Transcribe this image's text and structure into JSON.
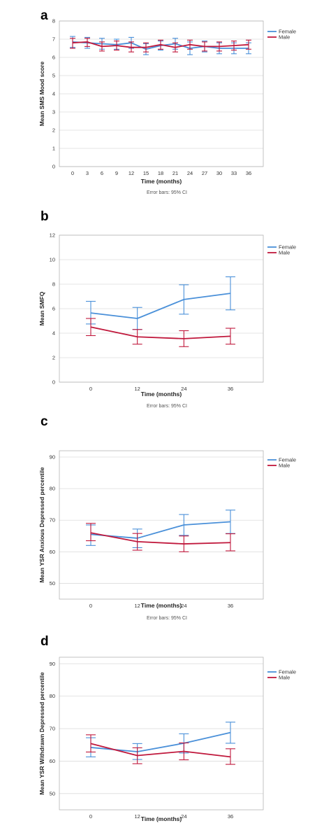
{
  "colors": {
    "female": "#4a90d9",
    "male": "#c0183c",
    "grid": "#dcdcdc",
    "frame": "#b5b5b5"
  },
  "chart_data": [
    {
      "panel": "a",
      "type": "line",
      "ylabel": "Mean SMS Mood score",
      "xlabel": "Time (months)",
      "footnote": "Error bars: 95% CI",
      "x": [
        0,
        3,
        6,
        9,
        12,
        15,
        18,
        21,
        24,
        27,
        30,
        33,
        36
      ],
      "ylim": [
        0,
        8
      ],
      "yticks": [
        0,
        1,
        2,
        3,
        4,
        5,
        6,
        7,
        8
      ],
      "grid": true,
      "legend": "top-right",
      "series": [
        {
          "name": "Female",
          "values": [
            6.85,
            6.8,
            6.75,
            6.7,
            6.8,
            6.45,
            6.65,
            6.75,
            6.5,
            6.6,
            6.5,
            6.5,
            6.5
          ],
          "ci_low": [
            6.55,
            6.5,
            6.45,
            6.45,
            6.5,
            6.15,
            6.4,
            6.45,
            6.15,
            6.3,
            6.2,
            6.2,
            6.2
          ],
          "ci_high": [
            7.15,
            7.1,
            7.05,
            7.0,
            7.1,
            6.75,
            6.9,
            7.05,
            6.85,
            6.9,
            6.8,
            6.8,
            6.8
          ]
        },
        {
          "name": "Male",
          "values": [
            6.8,
            6.85,
            6.6,
            6.65,
            6.55,
            6.55,
            6.7,
            6.55,
            6.7,
            6.6,
            6.6,
            6.65,
            6.7
          ],
          "ci_low": [
            6.5,
            6.6,
            6.35,
            6.4,
            6.3,
            6.3,
            6.45,
            6.3,
            6.45,
            6.35,
            6.35,
            6.4,
            6.45
          ],
          "ci_high": [
            7.05,
            7.05,
            6.85,
            6.9,
            6.85,
            6.8,
            6.95,
            6.8,
            6.95,
            6.85,
            6.85,
            6.9,
            6.95
          ]
        }
      ]
    },
    {
      "panel": "b",
      "type": "line",
      "ylabel": "Mean SMFQ",
      "xlabel": "Time (months)",
      "footnote": "Error bars: 95% CI",
      "x": [
        0,
        12,
        24,
        36
      ],
      "ylim": [
        0,
        12
      ],
      "yticks": [
        0,
        2,
        4,
        6,
        8,
        10,
        12
      ],
      "grid": true,
      "legend": "top-right",
      "series": [
        {
          "name": "Female",
          "values": [
            5.65,
            5.2,
            6.75,
            7.25
          ],
          "ci_low": [
            4.75,
            4.3,
            5.55,
            5.9
          ],
          "ci_high": [
            6.6,
            6.1,
            7.95,
            8.6
          ]
        },
        {
          "name": "Male",
          "values": [
            4.5,
            3.7,
            3.55,
            3.75
          ],
          "ci_low": [
            3.8,
            3.1,
            2.9,
            3.1
          ],
          "ci_high": [
            5.2,
            4.3,
            4.2,
            4.4
          ]
        }
      ]
    },
    {
      "panel": "c",
      "type": "line",
      "ylabel": "Mean YSR Anxious Depressed percentile",
      "xlabel": "Time (months)",
      "footnote": "Error bars: 95% CI",
      "x": [
        0,
        12,
        24,
        36
      ],
      "ylim": [
        45,
        92
      ],
      "yticks": [
        50,
        60,
        70,
        80,
        90
      ],
      "grid": true,
      "legend": "top-right",
      "series": [
        {
          "name": "Female",
          "values": [
            65.5,
            64.3,
            68.5,
            69.5
          ],
          "ci_low": [
            62.0,
            61.3,
            65.2,
            65.8
          ],
          "ci_high": [
            68.5,
            67.2,
            71.8,
            73.2
          ]
        },
        {
          "name": "Male",
          "values": [
            66.0,
            63.2,
            62.5,
            62.9
          ],
          "ci_low": [
            63.5,
            60.5,
            60.0,
            60.3
          ],
          "ci_high": [
            69.0,
            65.8,
            65.0,
            65.7
          ]
        }
      ]
    },
    {
      "panel": "d",
      "type": "line",
      "ylabel": "Mean YSR Withdrawn Depressed percentile",
      "xlabel": "Time (months)",
      "footnote": "",
      "x": [
        0,
        12,
        24,
        36
      ],
      "ylim": [
        45,
        92
      ],
      "yticks": [
        50,
        60,
        70,
        80,
        90
      ],
      "grid": true,
      "legend": "top-right",
      "series": [
        {
          "name": "Female",
          "values": [
            64.2,
            62.9,
            65.5,
            68.8
          ],
          "ci_low": [
            61.3,
            60.5,
            62.5,
            65.5
          ],
          "ci_high": [
            67.2,
            65.4,
            68.4,
            72.0
          ]
        },
        {
          "name": "Male",
          "values": [
            65.4,
            61.7,
            63.0,
            61.3
          ],
          "ci_low": [
            62.8,
            59.2,
            60.4,
            59.0
          ],
          "ci_high": [
            68.1,
            64.1,
            65.6,
            63.8
          ]
        }
      ]
    }
  ]
}
